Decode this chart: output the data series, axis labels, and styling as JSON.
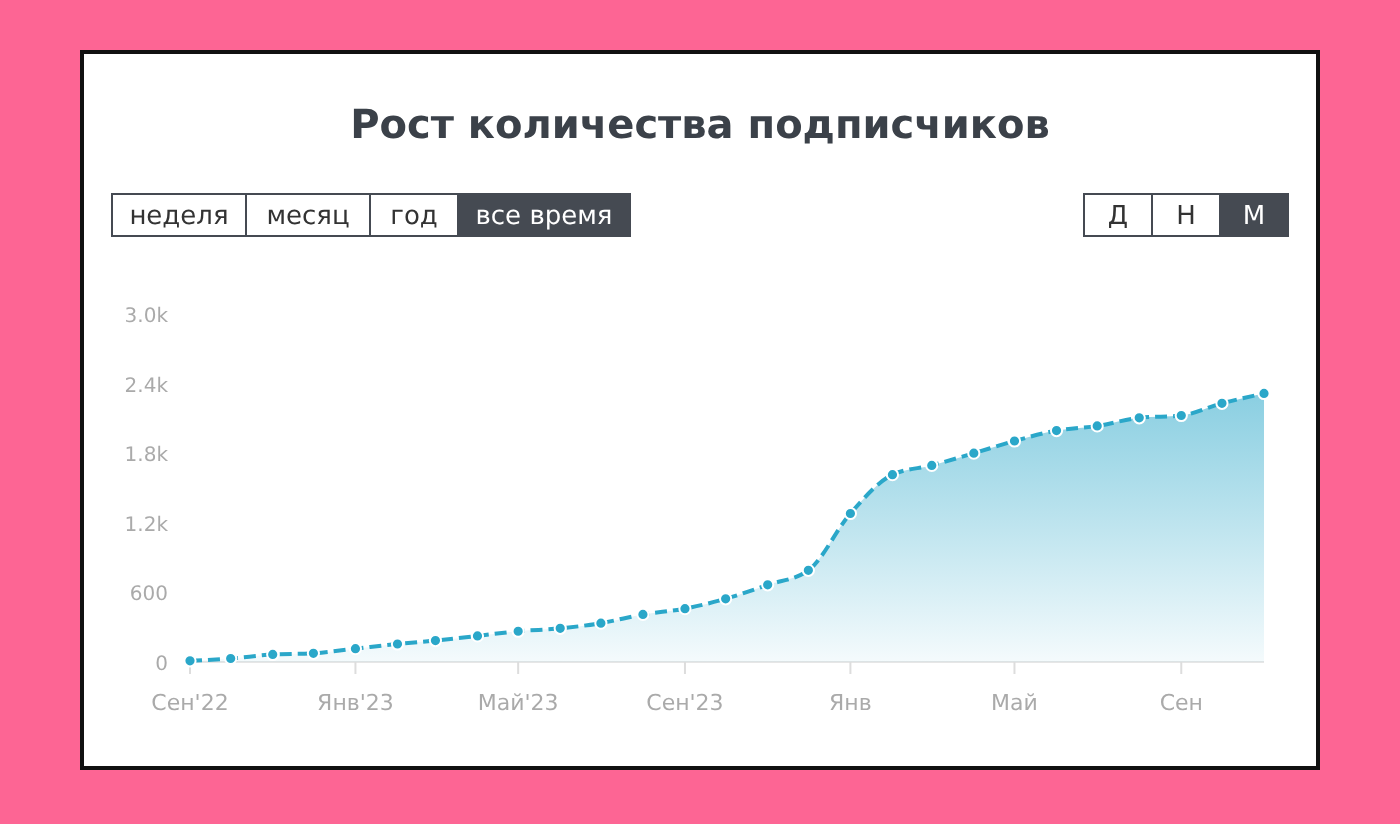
{
  "chart_data": {
    "type": "area",
    "title": "Рост количества подписчиков",
    "annotations": [
      "неделя",
      "месяц",
      "год",
      "все время",
      "Д",
      "Н",
      "М"
    ],
    "x": [
      "2022-09",
      "2022-10",
      "2022-11",
      "2022-12",
      "2023-01",
      "2023-02",
      "2023-03",
      "2023-04",
      "2023-05",
      "2023-06",
      "2023-07",
      "2023-08",
      "2023-09",
      "2023-10",
      "2023-11",
      "2023-12",
      "2024-01",
      "2024-02",
      "2024-03",
      "2024-04",
      "2024-05",
      "2024-06",
      "2024-07",
      "2024-08",
      "2024-09",
      "2024-10",
      "2024-11"
    ],
    "series": [
      {
        "color": "#2aa7c9",
        "values": [
          10,
          30,
          65,
          75,
          115,
          155,
          185,
          225,
          265,
          290,
          335,
          410,
          460,
          545,
          665,
          790,
          1280,
          1615,
          1695,
          1800,
          1905,
          1995,
          2035,
          2105,
          2125,
          2230,
          2315
        ]
      }
    ],
    "xlim": [
      "2022-09",
      "2024-11"
    ],
    "xticks": [
      {
        "value": "2022-09",
        "label": "Сен'22"
      },
      {
        "value": "2023-01",
        "label": "Янв'23"
      },
      {
        "value": "2023-05",
        "label": "Май'23"
      },
      {
        "value": "2023-09",
        "label": "Сен'23"
      },
      {
        "value": "2024-01",
        "label": "Янв"
      },
      {
        "value": "2024-05",
        "label": "Май"
      },
      {
        "value": "2024-09",
        "label": "Сен"
      }
    ],
    "ylim": [
      0,
      3000
    ],
    "yticks": [
      0,
      600,
      {
        "value": 1200,
        "label": "1.2k"
      },
      {
        "value": 1800,
        "label": "1.8k"
      },
      {
        "value": 2400,
        "label": "2.4k"
      },
      {
        "value": 3000,
        "label": "3.0k"
      }
    ],
    "marker": "circle",
    "line_style": "dashed",
    "grid": false
  }
}
